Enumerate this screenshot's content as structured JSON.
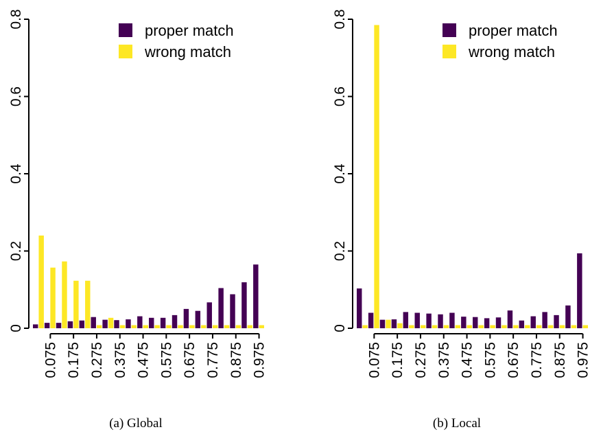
{
  "colors": {
    "proper": "#440154",
    "wrong": "#FDE725"
  },
  "chart_data": [
    {
      "type": "bar",
      "caption": "(a) Global",
      "legend": {
        "position": "top-right",
        "entries": [
          "proper match",
          "wrong match"
        ]
      },
      "ylim": [
        0,
        0.8
      ],
      "yticks": [
        "0",
        "0.2",
        "0.4",
        "0.6",
        "0.8"
      ],
      "xtick_labels": [
        "0.075",
        "0.175",
        "0.275",
        "0.375",
        "0.475",
        "0.575",
        "0.675",
        "0.775",
        "0.875",
        "0.975"
      ],
      "categories": [
        "0.025",
        "0.075",
        "0.125",
        "0.175",
        "0.225",
        "0.275",
        "0.325",
        "0.375",
        "0.425",
        "0.475",
        "0.525",
        "0.575",
        "0.625",
        "0.675",
        "0.725",
        "0.775",
        "0.825",
        "0.875",
        "0.925",
        "0.975"
      ],
      "series": [
        {
          "name": "proper match",
          "values": [
            0.01,
            0.014,
            0.014,
            0.018,
            0.02,
            0.029,
            0.022,
            0.021,
            0.023,
            0.031,
            0.027,
            0.027,
            0.034,
            0.05,
            0.045,
            0.067,
            0.104,
            0.088,
            0.119,
            0.165
          ]
        },
        {
          "name": "wrong match",
          "values": [
            0.24,
            0.157,
            0.173,
            0.123,
            0.123,
            0.008,
            0.027,
            0.008,
            0.008,
            0.008,
            0.008,
            0.008,
            0.008,
            0.008,
            0.008,
            0.008,
            0.008,
            0.008,
            0.008,
            0.008
          ]
        }
      ]
    },
    {
      "type": "bar",
      "caption": "(b) Local",
      "legend": {
        "position": "top-right",
        "entries": [
          "proper match",
          "wrong match"
        ]
      },
      "ylim": [
        0,
        0.8
      ],
      "yticks": [
        "0",
        "0.2",
        "0.4",
        "0.6",
        "0.8"
      ],
      "xtick_labels": [
        "0.075",
        "0.175",
        "0.275",
        "0.375",
        "0.475",
        "0.575",
        "0.675",
        "0.775",
        "0.875",
        "0.975"
      ],
      "categories": [
        "0.025",
        "0.075",
        "0.125",
        "0.175",
        "0.225",
        "0.275",
        "0.325",
        "0.375",
        "0.425",
        "0.475",
        "0.525",
        "0.575",
        "0.625",
        "0.675",
        "0.725",
        "0.775",
        "0.825",
        "0.875",
        "0.925",
        "0.975"
      ],
      "series": [
        {
          "name": "proper match",
          "values": [
            0.103,
            0.04,
            0.022,
            0.023,
            0.042,
            0.04,
            0.038,
            0.036,
            0.04,
            0.03,
            0.029,
            0.026,
            0.028,
            0.046,
            0.02,
            0.031,
            0.042,
            0.034,
            0.059,
            0.194
          ]
        },
        {
          "name": "wrong match",
          "values": [
            0.008,
            0.785,
            0.022,
            0.013,
            0.008,
            0.008,
            0.008,
            0.008,
            0.008,
            0.008,
            0.008,
            0.008,
            0.008,
            0.008,
            0.008,
            0.008,
            0.008,
            0.008,
            0.008,
            0.008
          ]
        }
      ]
    }
  ]
}
